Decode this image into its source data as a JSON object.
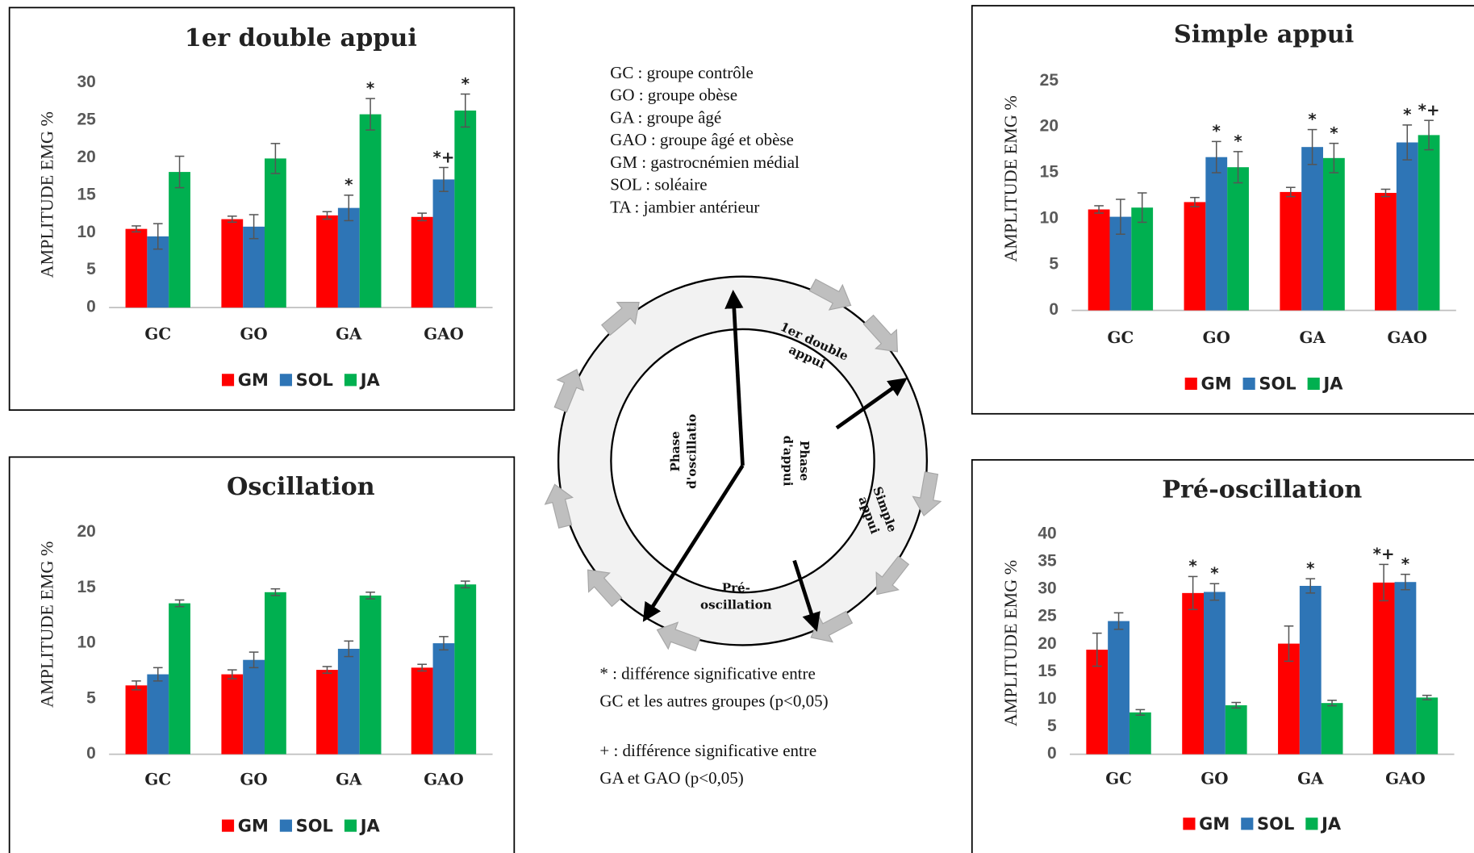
{
  "chart_data": [
    {
      "type": "bar",
      "title": "1er double appui",
      "y_label": "AMPLITUDE EMG %",
      "categories": [
        "GC",
        "GO",
        "GA",
        "GAO"
      ],
      "ylim": [
        0,
        30
      ],
      "yticks": [
        0,
        5,
        10,
        15,
        20,
        25,
        30
      ],
      "series": [
        {
          "name": "GM",
          "color": "#ff0000",
          "values": [
            10.5,
            11.8,
            12.3,
            12.1
          ],
          "errors": [
            0.4,
            0.4,
            0.5,
            0.5
          ],
          "annotations": [
            null,
            null,
            null,
            null
          ]
        },
        {
          "name": "SOL",
          "color": "#2e75b6",
          "values": [
            9.5,
            10.8,
            13.3,
            17.1
          ],
          "errors": [
            1.7,
            1.6,
            1.7,
            1.6
          ],
          "annotations": [
            null,
            null,
            "*",
            "*+"
          ]
        },
        {
          "name": "JA",
          "color": "#00b050",
          "values": [
            18.1,
            19.9,
            25.8,
            26.3
          ],
          "errors": [
            2.1,
            2.0,
            2.1,
            2.2
          ],
          "annotations": [
            null,
            null,
            "*",
            "*"
          ]
        }
      ]
    },
    {
      "type": "bar",
      "title": "Simple appui",
      "y_label": "AMPLITUDE EMG %",
      "categories": [
        "GC",
        "GO",
        "GA",
        "GAO"
      ],
      "ylim": [
        0,
        25
      ],
      "yticks": [
        0,
        5,
        10,
        15,
        20,
        25
      ],
      "series": [
        {
          "name": "GM",
          "color": "#ff0000",
          "values": [
            11.0,
            11.8,
            12.9,
            12.8
          ],
          "errors": [
            0.4,
            0.5,
            0.5,
            0.4
          ],
          "annotations": [
            null,
            null,
            null,
            null
          ]
        },
        {
          "name": "SOL",
          "color": "#2e75b6",
          "values": [
            10.2,
            16.7,
            17.8,
            18.3
          ],
          "errors": [
            1.9,
            1.7,
            1.9,
            1.9
          ],
          "annotations": [
            null,
            "*",
            "*",
            "*"
          ]
        },
        {
          "name": "JA",
          "color": "#00b050",
          "values": [
            11.2,
            15.6,
            16.6,
            19.1
          ],
          "errors": [
            1.6,
            1.7,
            1.6,
            1.6
          ],
          "annotations": [
            null,
            "*",
            "*",
            "*+"
          ]
        }
      ]
    },
    {
      "type": "bar",
      "title": "Oscillation",
      "y_label": "AMPLITUDE EMG %",
      "categories": [
        "GC",
        "GO",
        "GA",
        "GAO"
      ],
      "ylim": [
        0,
        20
      ],
      "yticks": [
        0,
        5,
        10,
        15,
        20
      ],
      "series": [
        {
          "name": "GM",
          "color": "#ff0000",
          "values": [
            6.2,
            7.2,
            7.6,
            7.8
          ],
          "errors": [
            0.4,
            0.4,
            0.3,
            0.3
          ]
        },
        {
          "name": "SOL",
          "color": "#2e75b6",
          "values": [
            7.2,
            8.5,
            9.5,
            10.0
          ],
          "errors": [
            0.6,
            0.7,
            0.7,
            0.6
          ]
        },
        {
          "name": "JA",
          "color": "#00b050",
          "values": [
            13.6,
            14.6,
            14.3,
            15.3
          ],
          "errors": [
            0.3,
            0.3,
            0.3,
            0.3
          ]
        }
      ]
    },
    {
      "type": "bar",
      "title": "Pré-oscillation",
      "y_label": "AMPLITUDE EMG %",
      "categories": [
        "GC",
        "GO",
        "GA",
        "GAO"
      ],
      "ylim": [
        0,
        40
      ],
      "yticks": [
        0,
        5,
        10,
        15,
        20,
        25,
        30,
        35,
        40
      ],
      "series": [
        {
          "name": "GM",
          "color": "#ff0000",
          "values": [
            19.0,
            29.3,
            20.1,
            31.2
          ],
          "errors": [
            3.0,
            3.0,
            3.2,
            3.3
          ],
          "annotations": [
            null,
            "*",
            null,
            "*+"
          ]
        },
        {
          "name": "SOL",
          "color": "#2e75b6",
          "values": [
            24.2,
            29.5,
            30.6,
            31.3
          ],
          "errors": [
            1.5,
            1.5,
            1.3,
            1.4
          ],
          "annotations": [
            null,
            "*",
            "*",
            "*"
          ]
        },
        {
          "name": "JA",
          "color": "#00b050",
          "values": [
            7.6,
            8.9,
            9.3,
            10.3
          ],
          "errors": [
            0.5,
            0.5,
            0.5,
            0.4
          ],
          "annotations": [
            null,
            null,
            null,
            null
          ]
        }
      ]
    }
  ],
  "abbreviations": [
    "GC : groupe contrôle",
    "GO : groupe obèse",
    "GA : groupe âgé",
    "GAO : groupe âgé et obèse",
    "GM : gastrocnémien médial",
    "SOL : soléaire",
    "TA : jambier antérieur"
  ],
  "notes": [
    [
      "* : différence significative entre",
      "GC et les autres groupes (p<0,05)"
    ],
    [
      "+ : différence significative entre",
      "GA et GAO (p<0,05)"
    ]
  ],
  "diagram": {
    "swing": [
      "Phase",
      "d'oscillatio"
    ],
    "stance": [
      "Phase",
      "d'appui"
    ],
    "double_support": [
      "1er double",
      "appui"
    ],
    "single_support": [
      "Simple",
      "appui"
    ],
    "pre_swing": [
      "Pré-",
      "oscillation"
    ]
  }
}
